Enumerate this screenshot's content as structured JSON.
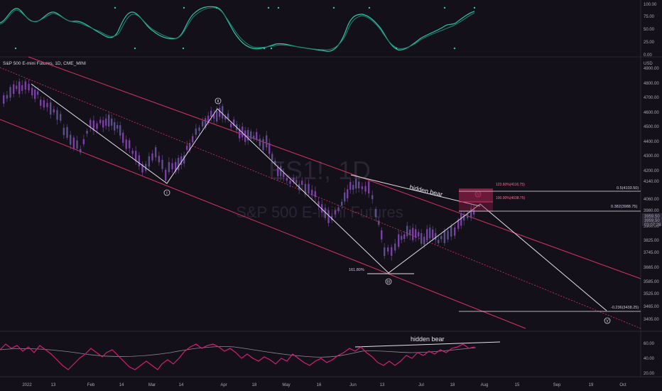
{
  "header": {
    "symbol_title": "S&P 500 E-mini Futures, 1D, CME_MINI",
    "currency": "USD",
    "watermark_ticker": "ES1!, 1D",
    "watermark_name": "S&P 500 E-mini Futures"
  },
  "colors": {
    "background": "#131019",
    "bull_candle": "#5b4f86",
    "bear_candle": "#7b3fa3",
    "channel_line": "#d6345f",
    "wave_line": "#e0dfe8",
    "fib_red": "#ff3d6e",
    "oscillator_1": "#2ec4a6",
    "oscillator_2": "#1f7f6f",
    "rsi_line": "#d41e74",
    "rsi_signal": "#8c8a96"
  },
  "chart_data": [
    {
      "panel": "stochastic-oscillator",
      "type": "line",
      "y_ticks": [
        "100.00",
        "75.00",
        "50.00",
        "25.00",
        "0.00"
      ],
      "ylim": [
        0,
        100
      ],
      "grid": false
    },
    {
      "panel": "price",
      "type": "candlestick",
      "title": "S&P 500 E-mini Futures, 1D, CME_MINI",
      "y_unit": "USD",
      "y_ticks": [
        "4900.00",
        "4800.00",
        "4700.00",
        "4600.00",
        "4500.00",
        "4400.00",
        "4300.00",
        "4200.00",
        "4140.00",
        "4060.00",
        "3980.00",
        "3900.00",
        "3825.00",
        "3745.00",
        "3665.00",
        "3585.00",
        "3525.00",
        "3465.00",
        "3405.00"
      ],
      "ylim": [
        3370,
        4960
      ],
      "current_price_labels": [
        "3959.50",
        "3959.50",
        "03:07:28"
      ],
      "wave_labels": [
        "I",
        "II",
        "III",
        "IV",
        "V"
      ],
      "fib_levels": [
        {
          "label": "123.60%(4116.75)",
          "value": 4116.75
        },
        {
          "label": "100.00%(4038.75)",
          "value": 4038.75
        },
        {
          "label": "0.5(4103.50)",
          "value": 4103.5
        },
        {
          "label": "0.382(3988.75)",
          "value": 3988.75
        },
        {
          "label": "-0.236(3438.25)",
          "value": 3438.25
        },
        {
          "label": "161.80%",
          "value": 3660
        }
      ],
      "annotations": [
        "hidden bear"
      ],
      "grid": false
    },
    {
      "panel": "rsi",
      "type": "line",
      "y_ticks": [
        "60.00",
        "40.00",
        "20.00"
      ],
      "annotations": [
        "hidden bear"
      ],
      "grid": false
    }
  ],
  "x_axis": {
    "labels": [
      "2022",
      "13",
      "Feb",
      "14",
      "Mar",
      "14",
      "Apr",
      "18",
      "May",
      "16",
      "Jun",
      "13",
      "Jul",
      "18",
      "Aug",
      "15",
      "Sep",
      "19",
      "Oct"
    ]
  }
}
